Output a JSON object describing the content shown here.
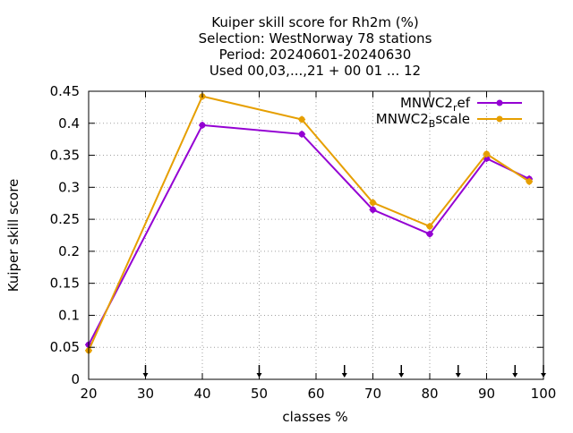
{
  "chart_data": {
    "type": "line",
    "title_lines": [
      "Kuiper skill score  for Rh2m (%)",
      "Selection: WestNorway     78 stations",
      "Period: 20240601-20240630",
      "Used 00,03,...,21 + 00 01 ... 12"
    ],
    "xlabel": "classes %",
    "ylabel": "Kuiper skill score",
    "xlim": [
      20,
      100
    ],
    "ylim": [
      0,
      0.45
    ],
    "x_ticks": [
      20,
      30,
      40,
      50,
      60,
      70,
      80,
      90,
      100
    ],
    "y_ticks": [
      0,
      0.05,
      0.1,
      0.15,
      0.2,
      0.25,
      0.3,
      0.35,
      0.4,
      0.45
    ],
    "y_tick_labels": [
      "0",
      "0.05",
      "0.1",
      "0.15",
      "0.2",
      "0.25",
      "0.3",
      "0.35",
      "0.4",
      "0.45"
    ],
    "grid": true,
    "legend_position": "top-right",
    "threshold_arrows_x": [
      30,
      50,
      65,
      75,
      85,
      95,
      100
    ],
    "series": [
      {
        "name_main": "MNWC2",
        "name_sub": "r",
        "name_tail": "ef",
        "color": "#9400d3",
        "x": [
          20,
          40,
          57.5,
          70,
          80,
          90,
          97.5
        ],
        "y": [
          0.054,
          0.397,
          0.383,
          0.265,
          0.227,
          0.345,
          0.313
        ]
      },
      {
        "name_main": "MNWC2",
        "name_sub": "B",
        "name_tail": "scale",
        "color": "#e69f00",
        "x": [
          20,
          40,
          57.5,
          70,
          80,
          90,
          97.5
        ],
        "y": [
          0.045,
          0.442,
          0.406,
          0.276,
          0.239,
          0.352,
          0.309
        ]
      }
    ]
  }
}
